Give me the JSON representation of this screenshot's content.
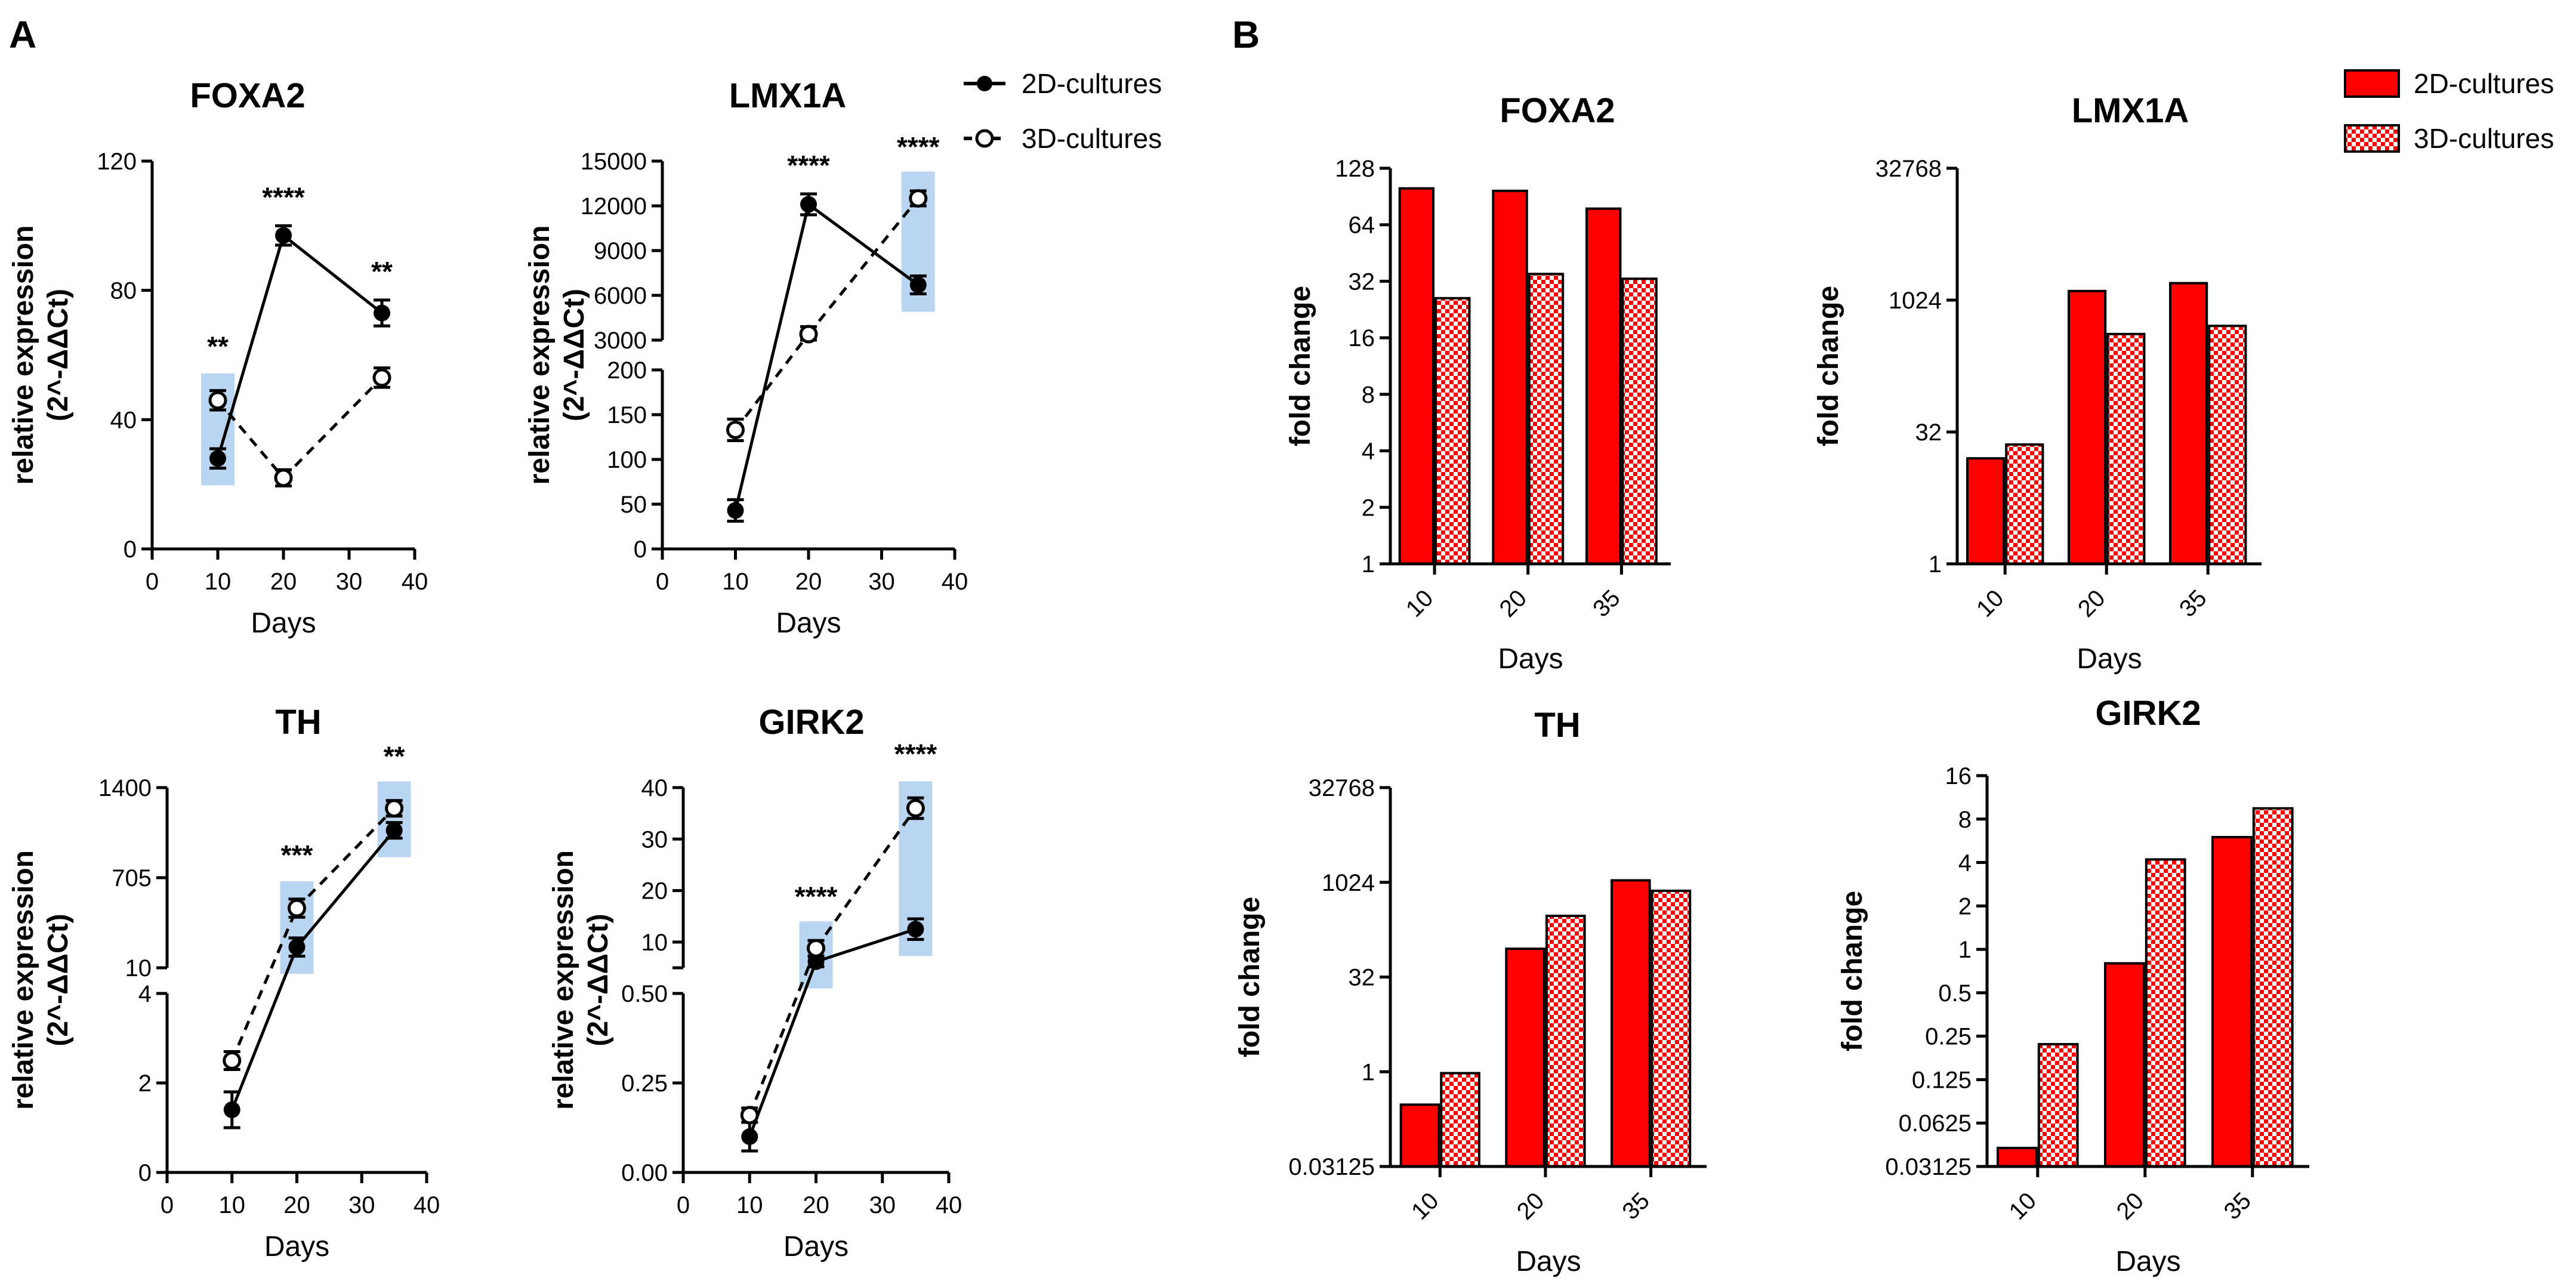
{
  "panels": {
    "A": "A",
    "B": "B"
  },
  "legend": {
    "series_2d": "2D-cultures",
    "series_3d": "3D-cultures"
  },
  "colors": {
    "bar_2d": "#ff0000",
    "highlight": "#b9d5f1",
    "line": "#000000"
  },
  "chart_data": [
    {
      "panel": "A",
      "type": "line",
      "title": "FOXA2",
      "xlabel": "Days",
      "ylabel": [
        "relative expression",
        "(2^-ΔΔCt)"
      ],
      "xlim": [
        0,
        40
      ],
      "xticks": [
        "0",
        "10",
        "20",
        "30",
        "40"
      ],
      "ylim": [
        0,
        120
      ],
      "yticks": [
        "0",
        "40",
        "80",
        "120"
      ],
      "x": [
        10,
        20,
        35
      ],
      "series": [
        {
          "name": "2D-cultures",
          "values": [
            28,
            97,
            73
          ],
          "errors": [
            3,
            3,
            4
          ]
        },
        {
          "name": "3D-cultures",
          "values": [
            46,
            22,
            53
          ],
          "errors": [
            3,
            2.5,
            3
          ]
        }
      ],
      "significance": [
        "**",
        "****",
        "**"
      ],
      "highlighted_days": [
        10
      ]
    },
    {
      "panel": "A",
      "type": "line",
      "title": "LMX1A",
      "xlabel": "Days",
      "ylabel": [
        "relative expression",
        "(2^-ΔΔCt)"
      ],
      "xlim": [
        0,
        40
      ],
      "xticks": [
        "0",
        "10",
        "20",
        "30",
        "40"
      ],
      "axis_break": {
        "lower_ylim": [
          0,
          200
        ],
        "upper_ylim": [
          3000,
          15000
        ]
      },
      "yticks_lower": [
        "0",
        "50",
        "100",
        "150",
        "200"
      ],
      "yticks_upper": [
        "3000",
        "6000",
        "9000",
        "12000",
        "15000"
      ],
      "x": [
        10,
        20,
        35
      ],
      "series": [
        {
          "name": "2D-cultures",
          "values": [
            43,
            12100,
            6700
          ],
          "errors": [
            12,
            700,
            600
          ]
        },
        {
          "name": "3D-cultures",
          "values": [
            133,
            3400,
            12500
          ],
          "errors": [
            12,
            500,
            500
          ]
        }
      ],
      "significance": [
        "",
        "****",
        "****"
      ],
      "highlighted_days": [
        35
      ]
    },
    {
      "panel": "A",
      "type": "line",
      "title": "TH",
      "xlabel": "Days",
      "ylabel": [
        "relative expression",
        "(2^-ΔΔCt)"
      ],
      "xlim": [
        0,
        40
      ],
      "xticks": [
        "0",
        "10",
        "20",
        "30",
        "40"
      ],
      "axis_break": {
        "lower_ylim": [
          0,
          4
        ],
        "upper_ylim": [
          10,
          1400
        ]
      },
      "yticks_lower": [
        "0",
        "2",
        "4"
      ],
      "yticks_upper": [
        "10",
        "705",
        "1400"
      ],
      "x": [
        10,
        20,
        35
      ],
      "series": [
        {
          "name": "2D-cultures",
          "values": [
            1.4,
            170,
            1070
          ],
          "errors": [
            0.4,
            70,
            60
          ]
        },
        {
          "name": "3D-cultures",
          "values": [
            2.5,
            470,
            1240
          ],
          "errors": [
            0.2,
            70,
            60
          ]
        }
      ],
      "significance": [
        "",
        "***",
        "**"
      ],
      "highlighted_days": [
        20,
        35
      ]
    },
    {
      "panel": "A",
      "type": "line",
      "title": "GIRK2",
      "xlabel": "Days",
      "ylabel": [
        "relative expression",
        "(2^-ΔΔCt)"
      ],
      "xlim": [
        0,
        40
      ],
      "xticks": [
        "0",
        "10",
        "20",
        "30",
        "40"
      ],
      "axis_break": {
        "lower_ylim": [
          0,
          0.5
        ],
        "upper_ylim": [
          5,
          40
        ]
      },
      "yticks_lower": [
        "0.00",
        "0.25",
        "0.50"
      ],
      "yticks_upper": [
        "10",
        "20",
        "30",
        "40"
      ],
      "x": [
        10,
        20,
        35
      ],
      "series": [
        {
          "name": "2D-cultures",
          "values": [
            0.1,
            6.2,
            12.5
          ],
          "errors": [
            0.04,
            1.0,
            2.0
          ]
        },
        {
          "name": "3D-cultures",
          "values": [
            0.16,
            8.8,
            36
          ],
          "errors": [
            0.02,
            1.5,
            2.0
          ]
        }
      ],
      "significance": [
        "",
        "****",
        "****"
      ],
      "highlighted_days": [
        20,
        35
      ]
    },
    {
      "panel": "B",
      "type": "bar",
      "scale": "log2",
      "title": "FOXA2",
      "xlabel": "Days",
      "ylabel": "fold change",
      "categories": [
        "10",
        "20",
        "35"
      ],
      "yticks": [
        "1",
        "2",
        "4",
        "8",
        "16",
        "32",
        "64",
        "128"
      ],
      "ylim_log2": [
        0,
        7
      ],
      "series": [
        {
          "name": "2D-cultures",
          "values": [
            100,
            97,
            78
          ]
        },
        {
          "name": "3D-cultures",
          "values": [
            26,
            35,
            33
          ]
        }
      ]
    },
    {
      "panel": "B",
      "type": "bar",
      "scale": "log2",
      "title": "LMX1A",
      "xlabel": "Days",
      "ylabel": "fold change",
      "categories": [
        "10",
        "20",
        "35"
      ],
      "yticks": [
        "1",
        "32",
        "1024",
        "32768"
      ],
      "ylim_log2": [
        0,
        15
      ],
      "series": [
        {
          "name": "2D-cultures",
          "values": [
            16,
            1300,
            1600
          ]
        },
        {
          "name": "3D-cultures",
          "values": [
            23,
            420,
            520
          ]
        }
      ]
    },
    {
      "panel": "B",
      "type": "bar",
      "scale": "log2",
      "title": "TH",
      "xlabel": "Days",
      "ylabel": "fold change",
      "categories": [
        "10",
        "20",
        "35"
      ],
      "yticks": [
        "0.03125",
        "1",
        "32",
        "1024",
        "32768"
      ],
      "ylim_log2": [
        -5,
        15
      ],
      "series": [
        {
          "name": "2D-cultures",
          "values": [
            0.3,
            90,
            1100
          ]
        },
        {
          "name": "3D-cultures",
          "values": [
            0.95,
            300,
            750
          ]
        }
      ]
    },
    {
      "panel": "B",
      "type": "bar",
      "scale": "log2",
      "title": "GIRK2",
      "xlabel": "Days",
      "ylabel": "fold change",
      "categories": [
        "10",
        "20",
        "35"
      ],
      "yticks": [
        "0.03125",
        "0.0625",
        "0.125",
        "0.25",
        "0.5",
        "1",
        "2",
        "4",
        "8",
        "16"
      ],
      "ylim_log2": [
        -5,
        4
      ],
      "series": [
        {
          "name": "2D-cultures",
          "values": [
            0.042,
            0.8,
            6
          ]
        },
        {
          "name": "3D-cultures",
          "values": [
            0.22,
            4.2,
            9.5
          ]
        }
      ]
    }
  ]
}
